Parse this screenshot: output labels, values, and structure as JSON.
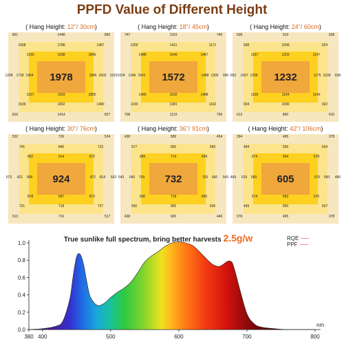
{
  "title": "PPFD Value of Different Height",
  "panels": [
    {
      "prefix": "( Hang Height: ",
      "height": "12\"/ 30cm",
      "suffix": ")",
      "center": "1978",
      "outer_top": [
        "861",
        "1448",
        "856"
      ],
      "outer_bottom": [
        "816",
        "1414",
        "837"
      ],
      "outer_left": "1208",
      "outer_right": "1155",
      "mid_top": [
        "1568",
        "1788",
        "1467"
      ],
      "mid_bottom": [
        "1536",
        "1802",
        "1480"
      ],
      "mid_left": "1739",
      "mid_right": "1602",
      "inner_top": [
        "1916",
        "1938",
        "1845"
      ],
      "inner_bottom": [
        "1927",
        "1933",
        "1855"
      ],
      "inner_left": "1954",
      "inner_right": "1845"
    },
    {
      "prefix": "( Hang Height: ",
      "height": "18\"/ 45cm",
      "suffix": ")",
      "center": "1572",
      "outer_top": [
        "747",
        "1153",
        "740"
      ],
      "outer_bottom": [
        "708",
        "1133",
        "706"
      ],
      "outer_left": "1024",
      "outer_right": "996",
      "mid_top": [
        "1200",
        "1411",
        "1171"
      ],
      "mid_bottom": [
        "1190",
        "1381",
        "1162"
      ],
      "mid_left": "1346",
      "mid_right": "1305",
      "inner_top": [
        "1488",
        "1546",
        "1467"
      ],
      "inner_bottom": [
        "1490",
        "1532",
        "1488"
      ],
      "inner_left": "1541",
      "inner_right": "1488"
    },
    {
      "prefix": "( Hang Height: ",
      "height": "24\"/ 60cm",
      "suffix": ")",
      "center": "1232",
      "outer_top": [
        "638",
        "919",
        "638"
      ],
      "outer_bottom": [
        "612",
        "890",
        "610"
      ],
      "outer_left": "852",
      "outer_right": "838",
      "mid_top": [
        "938",
        "1099",
        "924"
      ],
      "mid_bottom": [
        "934",
        "1090",
        "922"
      ],
      "mid_left": "1067",
      "mid_right": "1039",
      "inner_top": [
        "1167",
        "1203",
        "1147"
      ],
      "inner_bottom": [
        "1156",
        "1194",
        "1140"
      ],
      "inner_left": "1206",
      "inner_right": "1175"
    },
    {
      "prefix": "( Hang Height: ",
      "height": "30\"/ 76cm",
      "suffix": ")",
      "center": "924",
      "outer_top": [
        "532",
        "726",
        "524"
      ],
      "outer_bottom": [
        "513",
        "716",
        "517"
      ],
      "outer_left": "673",
      "outer_right": "663",
      "mid_top": [
        "741",
        "840",
        "723"
      ],
      "mid_bottom": [
        "721",
        "718",
        "727"
      ],
      "mid_left": "821",
      "mid_right": "814",
      "inner_top": [
        "892",
        "914",
        "872"
      ],
      "inner_bottom": [
        "878",
        "897",
        "872"
      ],
      "inner_left": "908",
      "inner_right": "872"
    },
    {
      "prefix": "( Hang Height: ",
      "height": "36\"/ 91cm",
      "suffix": ")",
      "center": "732",
      "outer_top": [
        "438",
        "589",
        "454"
      ],
      "outer_bottom": [
        "438",
        "605",
        "446"
      ],
      "outer_left": "543",
      "outer_right": "543",
      "mid_top": [
        "577",
        "655",
        "569"
      ],
      "mid_bottom": [
        "590",
        "665",
        "606"
      ],
      "mid_left": "640",
      "mid_right": "660",
      "inner_top": [
        "689",
        "714",
        "694"
      ],
      "inner_bottom": [
        "690",
        "718",
        "690"
      ],
      "inner_left": "709",
      "inner_right": "703"
    },
    {
      "prefix": "( Hang Height: ",
      "height": "42\"/ 106cm",
      "suffix": ")",
      "center": "605",
      "outer_top": [
        "394",
        "495",
        "378"
      ],
      "outer_bottom": [
        "378",
        "495",
        "378"
      ],
      "outer_left": "469",
      "outer_right": "490",
      "mid_top": [
        "494",
        "556",
        "504"
      ],
      "mid_bottom": [
        "499",
        "550",
        "507"
      ],
      "mid_left": "529",
      "mid_right": "550",
      "inner_top": [
        "574",
        "594",
        "578"
      ],
      "inner_bottom": [
        "574",
        "583",
        "576"
      ],
      "inner_left": "589",
      "inner_right": "576"
    }
  ],
  "spectrum": {
    "tagline": "True sunlike full spectrum, bring better harvests",
    "tagline_highlight": "2.5g/w",
    "legend": [
      "RQE",
      "PPF"
    ],
    "line_color": "#f28b8b"
  },
  "chart_data": {
    "type": "area",
    "title": "",
    "xlabel": "nm",
    "ylabel": "",
    "xlim": [
      380,
      800
    ],
    "ylim": [
      0,
      1.0
    ],
    "x_ticks": [
      "380",
      "400",
      "500",
      "600",
      "700",
      "800"
    ],
    "y_ticks": [
      "0.0",
      "0.2",
      "0.4",
      "0.6",
      "0.8",
      "1.0"
    ],
    "series": [
      {
        "name": "RQE",
        "x": [
          380,
          400,
          420,
          430,
          440,
          445,
          450,
          455,
          460,
          465,
          470,
          480,
          490,
          500,
          510,
          520,
          530,
          540,
          550,
          560,
          570,
          580,
          590,
          600,
          610,
          620,
          630,
          640,
          650,
          660,
          670,
          675,
          680,
          690,
          700,
          710,
          720,
          740,
          760,
          780,
          800
        ],
        "y": [
          0.0,
          0.01,
          0.04,
          0.1,
          0.35,
          0.62,
          0.84,
          0.87,
          0.76,
          0.55,
          0.38,
          0.28,
          0.3,
          0.37,
          0.43,
          0.48,
          0.55,
          0.66,
          0.78,
          0.85,
          0.9,
          0.96,
          1.0,
          1.01,
          1.0,
          0.97,
          0.9,
          0.82,
          0.75,
          0.73,
          0.78,
          0.79,
          0.74,
          0.45,
          0.18,
          0.07,
          0.03,
          0.01,
          0.0,
          0.0,
          0.0
        ]
      }
    ]
  }
}
